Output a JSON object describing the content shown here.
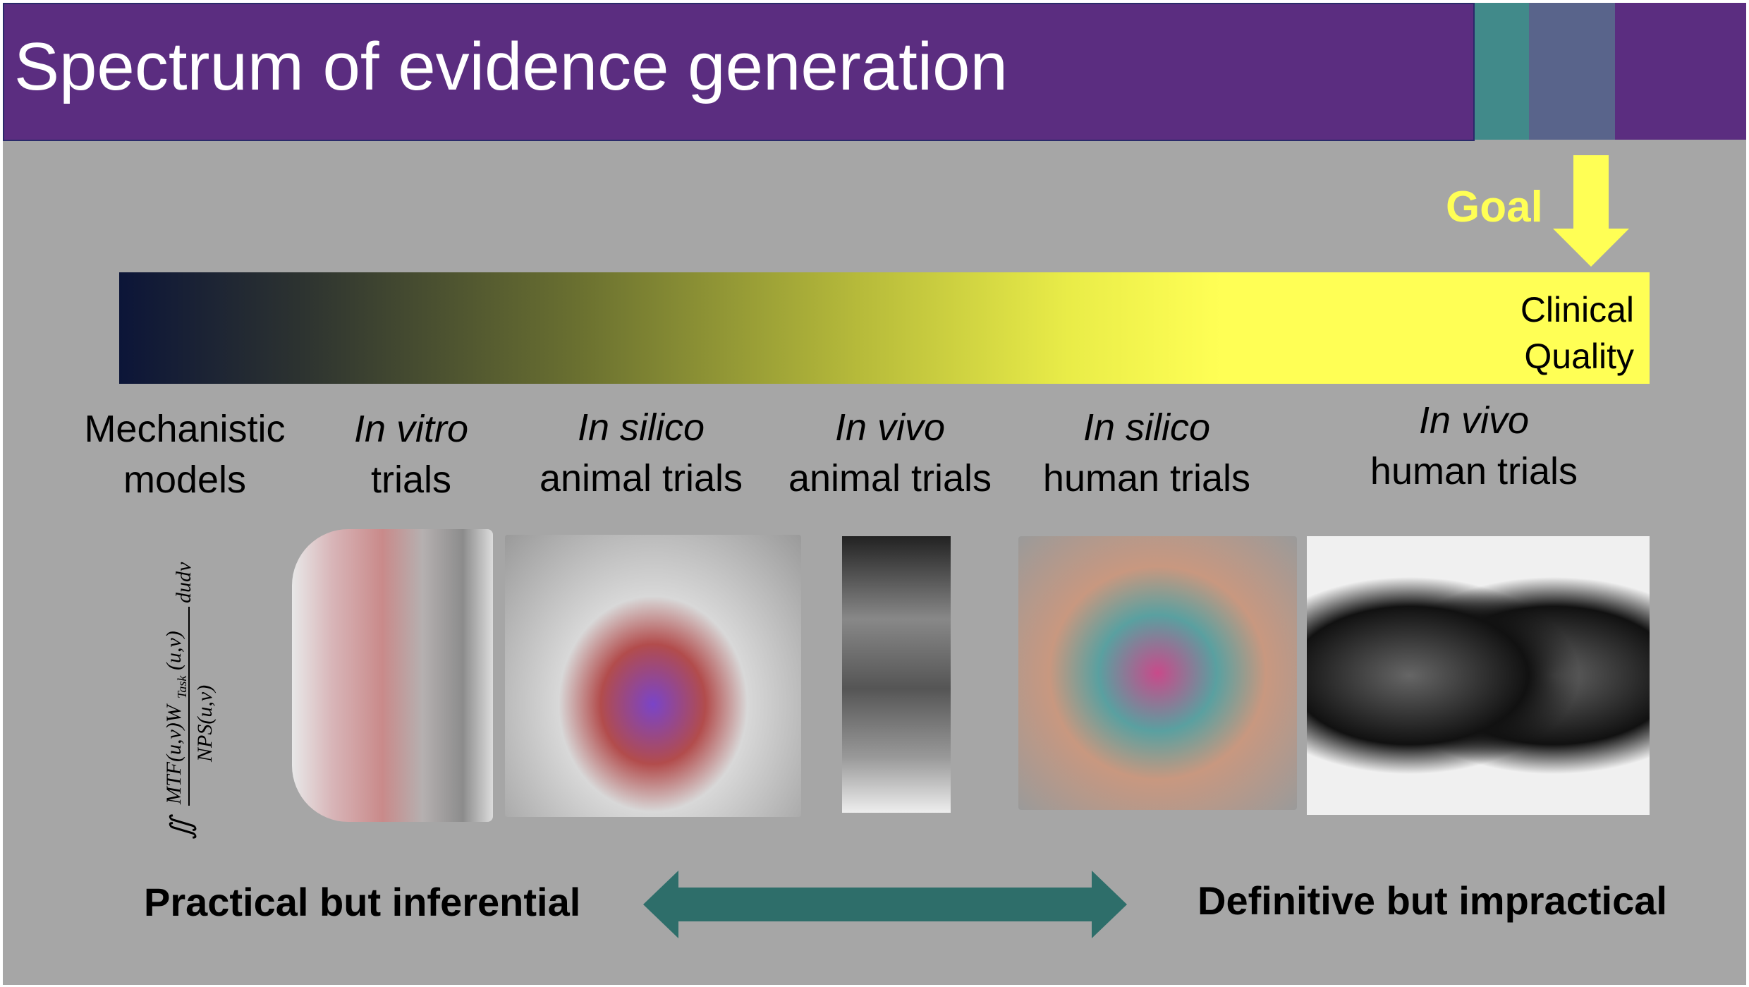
{
  "header": {
    "title": "Spectrum of evidence generation"
  },
  "goal": {
    "label": "Goal"
  },
  "bar": {
    "end_label_line1": "Clinical",
    "end_label_line2": "Quality"
  },
  "stages": [
    {
      "line1": "Mechanistic",
      "line2": "models",
      "italic_line": "none"
    },
    {
      "line1": "In vitro",
      "line2": "trials",
      "italic_line": "line1"
    },
    {
      "line1": "In silico",
      "line2": "animal trials",
      "italic_line": "line1"
    },
    {
      "line1": "In vivo",
      "line2": "animal trials",
      "italic_line": "line1"
    },
    {
      "line1": "In silico",
      "line2": "human trials",
      "italic_line": "line1"
    },
    {
      "line1": "In vivo",
      "line2": "human trials",
      "italic_line": "line1"
    }
  ],
  "formula": {
    "text": "∬ MTF(u,v) W_Task(u,v) / NPS(u,v) dudv"
  },
  "bottom": {
    "left": "Practical but inferential",
    "right": "Definitive but impractical"
  },
  "colors": {
    "header": "#5b2d80",
    "teal": "#418a8a",
    "slate": "#59648b",
    "background": "#a6a6a6",
    "goal": "#ffff55",
    "double_arrow": "#2e6e6a"
  }
}
